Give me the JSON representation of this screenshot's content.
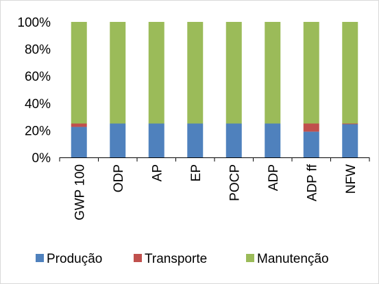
{
  "chart_data": {
    "type": "bar",
    "stacked": true,
    "categories": [
      "GWP 100",
      "ODP",
      "AP",
      "EP",
      "POCP",
      "ADP",
      "ADP ff",
      "NFW"
    ],
    "series": [
      {
        "name": "Produção",
        "color": "#4f81bd",
        "values": [
          22.5,
          25,
          25,
          25,
          25,
          25,
          19,
          24.5
        ]
      },
      {
        "name": "Transporte",
        "color": "#c0504d",
        "values": [
          2.5,
          0,
          0,
          0,
          0,
          0,
          6,
          0.5
        ]
      },
      {
        "name": "Manutenção",
        "color": "#9bbb59",
        "values": [
          75,
          75,
          75,
          75,
          75,
          75,
          75,
          75
        ]
      }
    ],
    "yticks": [
      "0%",
      "20%",
      "40%",
      "60%",
      "80%",
      "100%"
    ],
    "ylim": [
      0,
      100
    ],
    "grid": false,
    "legend": "bottom"
  }
}
